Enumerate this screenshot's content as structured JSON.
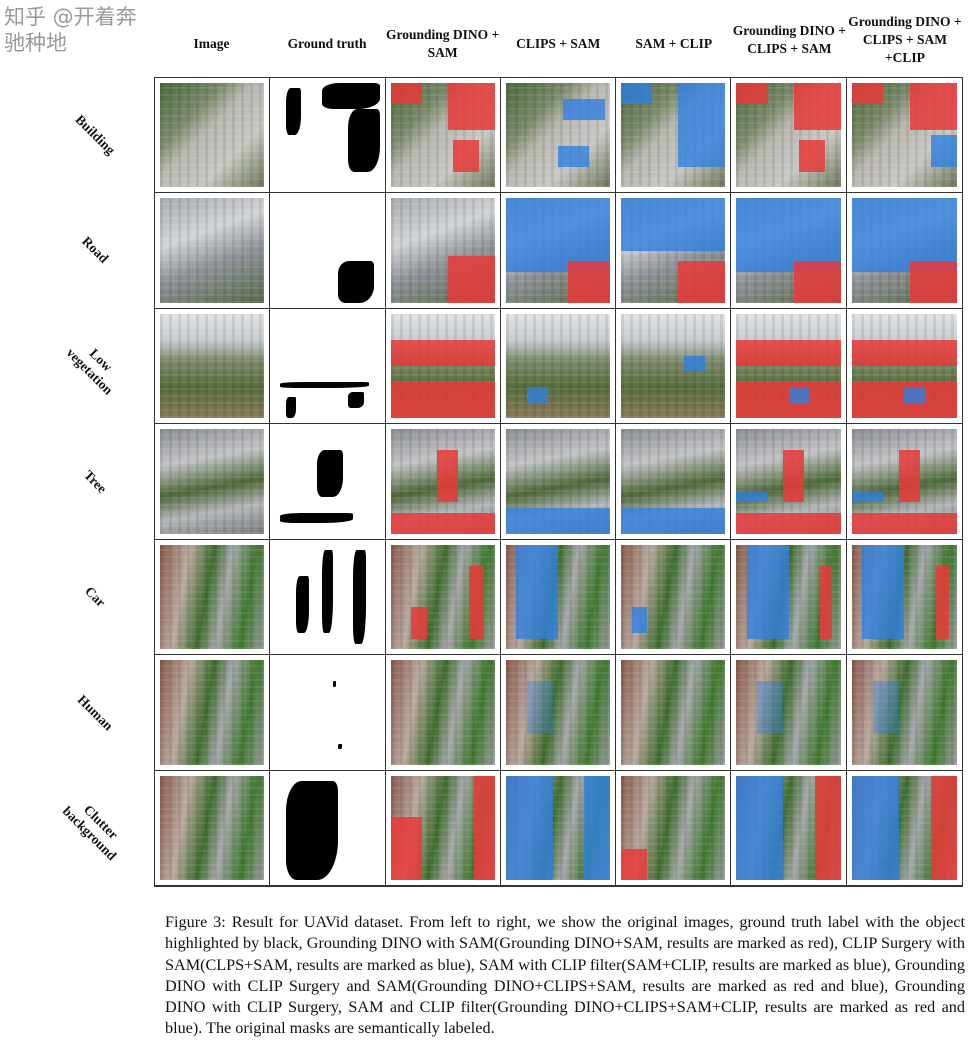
{
  "columns": [
    "Image",
    "Ground truth",
    "Grounding DINO + SAM",
    "CLIPS + SAM",
    "SAM + CLIP",
    "Grounding DINO + CLIPS + SAM",
    "Grounding DINO + CLIPS + SAM +CLIP"
  ],
  "rows": [
    "Building",
    "Road",
    "Low vegetation",
    "Tree",
    "Car",
    "Human",
    "Clutter background"
  ],
  "colors": {
    "red_mask": "#e8393a",
    "blue_mask": "#2f7fe0",
    "ground_truth": "#000000"
  },
  "caption": "Figure 3: Result for UAVid dataset. From left to right, we show the original images, ground truth label with the object highlighted by black, Grounding DINO with SAM(Grounding DINO+SAM, results are marked as red), CLIP Surgery with SAM(CLPS+SAM, results are marked as blue), SAM with CLIP filter(SAM+CLIP, results are marked as blue), Grounding DINO with CLIP Surgery and SAM(Grounding DINO+CLIPS+SAM, results are marked as red and blue), Grounding DINO with CLIP Surgery, SAM and CLIP filter(Grounding DINO+CLIPS+SAM+CLIP, results are marked as red and blue). The original masks are semantically labeled.",
  "watermark": "知乎 @开着奔驰种地"
}
